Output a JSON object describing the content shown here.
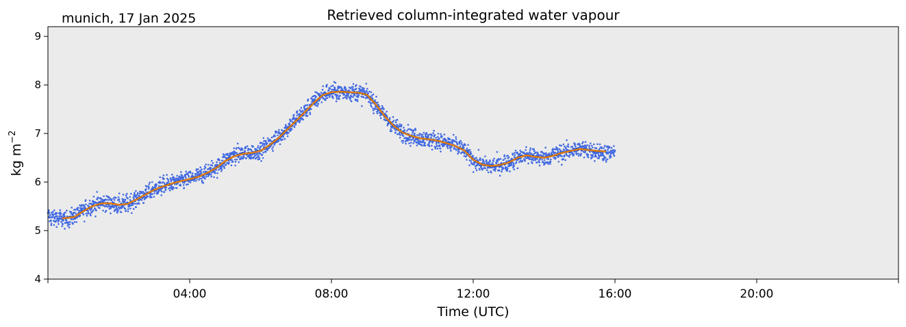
{
  "chart_data": {
    "type": "scatter",
    "title": "Retrieved column-integrated water vapour",
    "subtitle": "munich, 17 Jan 2025",
    "xlabel": "Time (UTC)",
    "ylabel": "kg m",
    "ylabel_superscript": "−2",
    "xlim_hours": [
      0,
      24
    ],
    "ylim": [
      4,
      9.2
    ],
    "x_ticks": [
      {
        "hour": 4,
        "label": "04:00"
      },
      {
        "hour": 8,
        "label": "08:00"
      },
      {
        "hour": 12,
        "label": "12:00"
      },
      {
        "hour": 16,
        "label": "16:00"
      },
      {
        "hour": 20,
        "label": "20:00"
      }
    ],
    "y_ticks": [
      {
        "value": 4,
        "label": "4"
      },
      {
        "value": 5,
        "label": "5"
      },
      {
        "value": 6,
        "label": "6"
      },
      {
        "value": 7,
        "label": "7"
      },
      {
        "value": 8,
        "label": "8"
      },
      {
        "value": 9,
        "label": "9"
      }
    ],
    "grid": false,
    "plot_background": "#ebebeb",
    "series": [
      {
        "kind": "scatter",
        "color": "#4169e1",
        "x_hours": [
          0.0,
          0.25,
          0.5,
          0.75,
          1.0,
          1.25,
          1.5,
          1.75,
          2.0,
          2.25,
          2.5,
          2.75,
          3.0,
          3.25,
          3.5,
          3.75,
          4.0,
          4.25,
          4.5,
          4.75,
          5.0,
          5.25,
          5.5,
          5.75,
          6.0,
          6.25,
          6.5,
          6.75,
          7.0,
          7.25,
          7.5,
          7.75,
          8.0,
          8.25,
          8.5,
          8.75,
          9.0,
          9.25,
          9.5,
          9.75,
          10.0,
          10.25,
          10.5,
          10.75,
          11.0,
          11.25,
          11.5,
          11.75,
          12.0,
          12.25,
          12.5,
          12.75,
          13.0,
          13.25,
          13.5,
          13.75,
          14.0,
          14.25,
          14.5,
          14.75,
          15.0,
          15.25,
          15.5,
          15.75,
          16.0
        ],
        "y": [
          5.28,
          5.26,
          5.22,
          5.3,
          5.42,
          5.52,
          5.58,
          5.56,
          5.52,
          5.55,
          5.65,
          5.75,
          5.85,
          5.92,
          5.98,
          6.02,
          6.06,
          6.12,
          6.2,
          6.3,
          6.45,
          6.55,
          6.58,
          6.6,
          6.65,
          6.78,
          6.92,
          7.1,
          7.28,
          7.45,
          7.65,
          7.8,
          7.85,
          7.86,
          7.85,
          7.84,
          7.8,
          7.6,
          7.35,
          7.15,
          7.02,
          6.95,
          6.9,
          6.88,
          6.85,
          6.8,
          6.75,
          6.65,
          6.45,
          6.35,
          6.33,
          6.35,
          6.4,
          6.5,
          6.55,
          6.52,
          6.5,
          6.55,
          6.6,
          6.65,
          6.68,
          6.66,
          6.62,
          6.6,
          6.6
        ],
        "spread": 0.15
      },
      {
        "kind": "line",
        "color": "#ff8c1a",
        "x_hours": [
          0.4,
          0.75,
          1.0,
          1.25,
          1.5,
          1.75,
          2.0,
          2.25,
          2.5,
          2.75,
          3.0,
          3.25,
          3.5,
          3.75,
          4.0,
          4.25,
          4.5,
          4.75,
          5.0,
          5.25,
          5.5,
          5.75,
          6.0,
          6.25,
          6.5,
          6.75,
          7.0,
          7.25,
          7.5,
          7.75,
          8.0,
          8.25,
          8.5,
          8.75,
          9.0,
          9.25,
          9.5,
          9.75,
          10.0,
          10.25,
          10.5,
          10.75,
          11.0,
          11.25,
          11.5,
          11.75,
          12.0,
          12.25,
          12.5,
          12.75,
          13.0,
          13.25,
          13.5,
          13.75,
          14.0,
          14.25,
          14.5,
          14.75,
          15.0,
          15.25,
          15.5,
          15.75
        ],
        "y": [
          5.25,
          5.28,
          5.4,
          5.5,
          5.56,
          5.56,
          5.53,
          5.55,
          5.64,
          5.74,
          5.84,
          5.91,
          5.97,
          6.02,
          6.06,
          6.11,
          6.19,
          6.29,
          6.43,
          6.53,
          6.58,
          6.6,
          6.64,
          6.76,
          6.9,
          7.08,
          7.26,
          7.44,
          7.63,
          7.79,
          7.85,
          7.86,
          7.85,
          7.84,
          7.8,
          7.6,
          7.36,
          7.16,
          7.02,
          6.95,
          6.9,
          6.88,
          6.85,
          6.8,
          6.74,
          6.65,
          6.46,
          6.36,
          6.33,
          6.35,
          6.4,
          6.5,
          6.55,
          6.52,
          6.5,
          6.54,
          6.6,
          6.64,
          6.68,
          6.66,
          6.64,
          6.63
        ]
      }
    ]
  }
}
